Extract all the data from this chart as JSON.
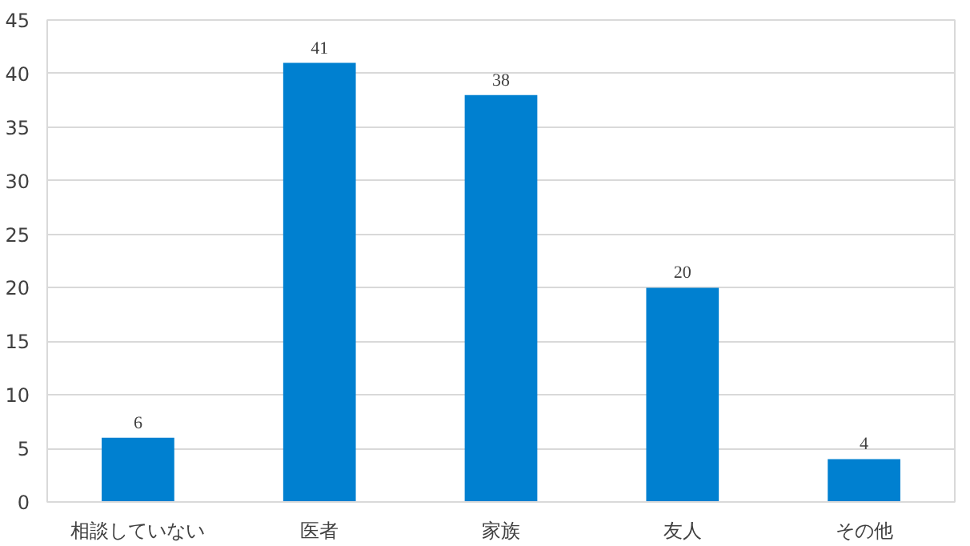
{
  "chart_data": {
    "type": "bar",
    "categories": [
      "相談していない",
      "医者",
      "家族",
      "友人",
      "その他"
    ],
    "values": [
      6,
      41,
      38,
      20,
      4
    ],
    "color": "#0080d0",
    "ylim": [
      0,
      45
    ],
    "yticks": [
      0,
      5,
      10,
      15,
      20,
      25,
      30,
      35,
      40,
      45
    ],
    "grid": "y",
    "data_labels": true
  }
}
